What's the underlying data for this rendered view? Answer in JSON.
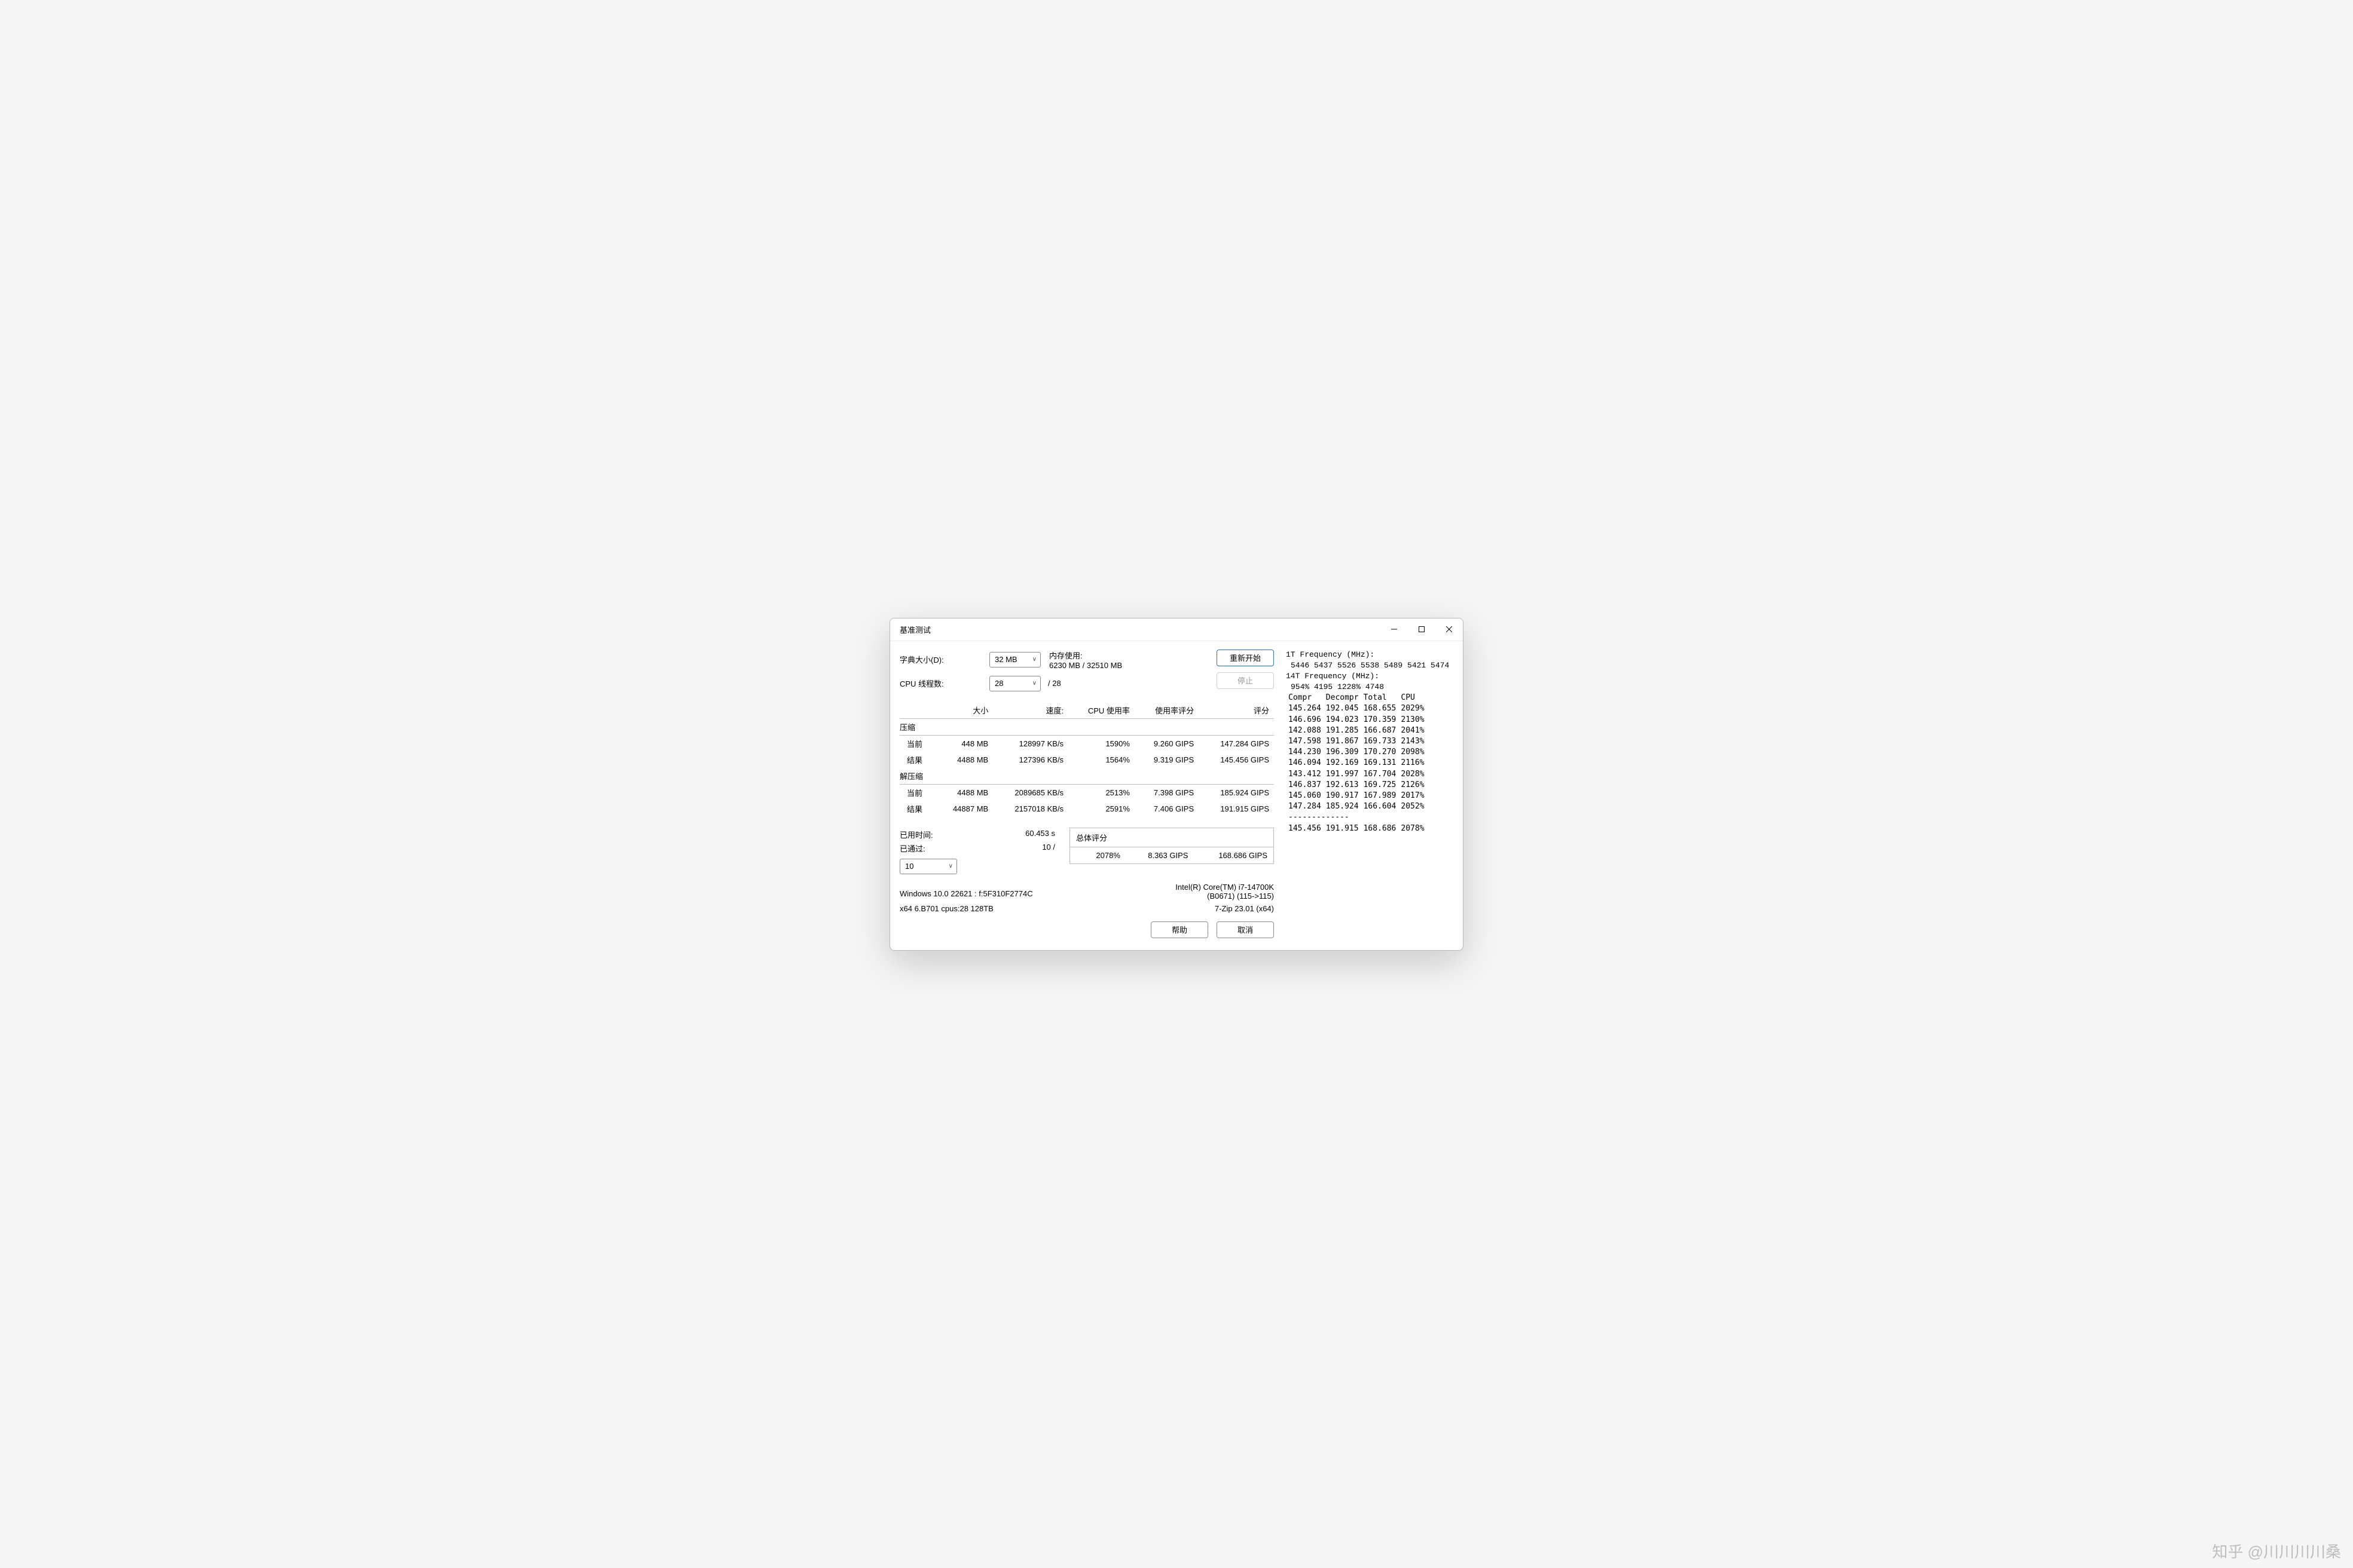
{
  "window": {
    "title": "基准测试"
  },
  "labels": {
    "dict_size": "字典大小(D):",
    "cpu_threads": "CPU 线程数:",
    "memory_usage": "内存使用:",
    "restart": "重新开始",
    "stop": "停止",
    "elapsed": "已用时间:",
    "passes": "已通过:",
    "total_rating": "总体评分",
    "help": "帮助",
    "cancel": "取消"
  },
  "settings": {
    "dict_value": "32 MB",
    "threads_value": "28",
    "threads_total": "/ 28",
    "mem_line": "6230 MB / 32510 MB",
    "passes_value": "10",
    "passes_total": "10 /",
    "elapsed_value": "60.453 s"
  },
  "table": {
    "headers": {
      "size": "大小",
      "speed": "速度:",
      "cpu": "CPU 使用率",
      "rating_usage": "使用率评分",
      "rating": "评分"
    },
    "compress_label": "压缩",
    "decompress_label": "解压缩",
    "current_label": "当前",
    "result_label": "结果",
    "compress": {
      "current": {
        "size": "448 MB",
        "speed": "128997 KB/s",
        "cpu": "1590%",
        "rating_usage": "9.260 GIPS",
        "rating": "147.284 GIPS"
      },
      "result": {
        "size": "4488 MB",
        "speed": "127396 KB/s",
        "cpu": "1564%",
        "rating_usage": "9.319 GIPS",
        "rating": "145.456 GIPS"
      }
    },
    "decompress": {
      "current": {
        "size": "4488 MB",
        "speed": "2089685 KB/s",
        "cpu": "2513%",
        "rating_usage": "7.398 GIPS",
        "rating": "185.924 GIPS"
      },
      "result": {
        "size": "44887 MB",
        "speed": "2157018 KB/s",
        "cpu": "2591%",
        "rating_usage": "7.406 GIPS",
        "rating": "191.915 GIPS"
      }
    }
  },
  "total": {
    "cpu": "2078%",
    "rating_usage": "8.363 GIPS",
    "rating": "168.686 GIPS"
  },
  "sysinfo": {
    "cpu_line1": "Intel(R) Core(TM) i7-14700K",
    "cpu_line2": "(B0671) (115->115)",
    "app_line": "7-Zip 23.01 (x64)",
    "os_line": "Windows 10.0 22621 : f:5F310F2774C",
    "arch_line": "x64 6.B701 cpus:28 128TB"
  },
  "rightpanel": {
    "freq1_label": "1T Frequency (MHz):",
    "freq1_values": "5446 5437 5526 5538 5489 5421 5474",
    "freq14_label": "14T Frequency (MHz):",
    "freq14_values": "954% 4195 1228% 4748",
    "stats_header": {
      "c1": "Compr",
      "c2": "Decompr",
      "c3": "Total",
      "c4": "CPU"
    },
    "rows": [
      {
        "c1": "145.264",
        "c2": "192.045",
        "c3": "168.655",
        "c4": "2029%"
      },
      {
        "c1": "146.696",
        "c2": "194.023",
        "c3": "170.359",
        "c4": "2130%"
      },
      {
        "c1": "142.088",
        "c2": "191.285",
        "c3": "166.687",
        "c4": "2041%"
      },
      {
        "c1": "147.598",
        "c2": "191.867",
        "c3": "169.733",
        "c4": "2143%"
      },
      {
        "c1": "144.230",
        "c2": "196.309",
        "c3": "170.270",
        "c4": "2098%"
      },
      {
        "c1": "146.094",
        "c2": "192.169",
        "c3": "169.131",
        "c4": "2116%"
      },
      {
        "c1": "143.412",
        "c2": "191.997",
        "c3": "167.704",
        "c4": "2028%"
      },
      {
        "c1": "146.837",
        "c2": "192.613",
        "c3": "169.725",
        "c4": "2126%"
      },
      {
        "c1": "145.060",
        "c2": "190.917",
        "c3": "167.989",
        "c4": "2017%"
      },
      {
        "c1": "147.284",
        "c2": "185.924",
        "c3": "166.604",
        "c4": "2052%"
      }
    ],
    "dashes": "-------------",
    "summary": {
      "c1": "145.456",
      "c2": "191.915",
      "c3": "168.686",
      "c4": "2078%"
    }
  },
  "watermark": "知乎 @川川川川桑",
  "colors": {
    "window_bg": "#ffffff",
    "body_bg": "#f5f5f5",
    "border": "#b8b8b8",
    "grid_border": "#bdbdbd",
    "primary_border": "#2a6ec0",
    "disabled_text": "#9a9a9a",
    "shadow": "rgba(0,0,0,0.18)"
  }
}
